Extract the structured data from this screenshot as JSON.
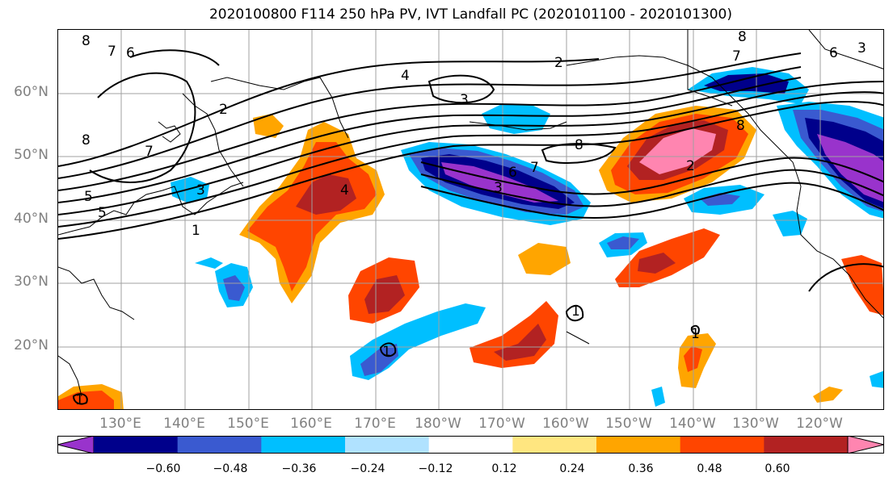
{
  "title": "2020100800 F114 250 hPa PV, IVT Landfall PC (2020101100 - 2020101300)",
  "lat_labels": [
    "60°N",
    "50°N",
    "40°N",
    "30°N",
    "20°N"
  ],
  "lon_labels": [
    "130°E",
    "140°E",
    "150°E",
    "160°E",
    "170°E",
    "180°W",
    "170°W",
    "160°W",
    "150°W",
    "140°W",
    "130°W",
    "120°W"
  ],
  "colorbar": {
    "ticks": [
      "−0.60",
      "−0.48",
      "−0.36",
      "−0.24",
      "−0.12",
      "0.12",
      "0.24",
      "0.36",
      "0.48",
      "0.60"
    ],
    "colors": [
      "#9933cc",
      "#00008b",
      "#3a5ad0",
      "#00bfff",
      "#b0e2ff",
      "#ffffff",
      "#ffe680",
      "#ffa500",
      "#ff4500",
      "#b22222",
      "#ff85b0"
    ]
  },
  "contour_labels": [
    "8",
    "7",
    "6",
    "5",
    "3",
    "2",
    "1",
    "4",
    "7",
    "8",
    "3",
    "2",
    "4",
    "3",
    "8",
    "6",
    "7",
    "8",
    "2",
    "5",
    "3",
    "1",
    "1",
    "1",
    "1",
    "8",
    "7",
    "6"
  ],
  "colors": {
    "grid": "#a0a0a0",
    "coast": "#000000",
    "contour": "#000000"
  }
}
